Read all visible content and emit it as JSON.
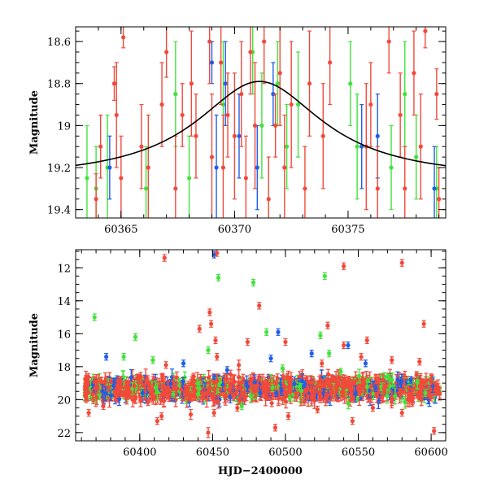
{
  "colors": {
    "red": "#f2493a",
    "green": "#43e23c",
    "blue": "#1f5fe6",
    "model": "#000000"
  },
  "chart_data": [
    {
      "type": "scatter",
      "title": "",
      "xlabel": "",
      "ylabel": "Magnitude",
      "xlim": [
        60363.0,
        60379.3
      ],
      "ylim": [
        19.44,
        18.53
      ],
      "y_inverted": true,
      "grid": false,
      "x_ticks": [
        60365,
        60370,
        60375
      ],
      "x_tick_labels": [
        "60365",
        "60370",
        "60375"
      ],
      "y_ticks": [
        18.6,
        18.8,
        19.0,
        19.2,
        19.4
      ],
      "y_tick_labels": [
        "18.6",
        "18.8",
        "19",
        "19.2",
        "19.4"
      ],
      "model_curve": {
        "type": "peak",
        "t0": 60371.1,
        "base_mag": 19.26,
        "amplitude": 0.47,
        "width_days": 3.4
      },
      "series": [
        {
          "color_key": "red",
          "points": [
            [
              60363.9,
              19.35,
              0.12
            ],
            [
              60364.1,
              19.1,
              0.15
            ],
            [
              60364.7,
              18.8,
              0.08
            ],
            [
              60364.8,
              18.95,
              0.25
            ],
            [
              60365.0,
              19.25,
              0.2
            ],
            [
              60365.1,
              18.58,
              0.05
            ],
            [
              60365.9,
              19.1,
              0.2
            ],
            [
              60366.2,
              19.2,
              0.25
            ],
            [
              60366.8,
              18.9,
              0.2
            ],
            [
              60367.0,
              18.65,
              0.12
            ],
            [
              60367.4,
              19.3,
              0.25
            ],
            [
              60367.7,
              18.95,
              0.15
            ],
            [
              60368.1,
              18.8,
              0.25
            ],
            [
              60368.3,
              19.05,
              0.2
            ],
            [
              60368.9,
              18.6,
              0.2
            ],
            [
              60369.0,
              19.15,
              0.3
            ],
            [
              60369.4,
              18.7,
              0.2
            ],
            [
              60369.5,
              19.2,
              0.25
            ],
            [
              60369.7,
              18.95,
              0.2
            ],
            [
              60370.0,
              19.05,
              0.3
            ],
            [
              60370.3,
              18.85,
              0.25
            ],
            [
              60370.5,
              19.25,
              0.2
            ],
            [
              60370.7,
              18.65,
              0.2
            ],
            [
              60370.9,
              19.0,
              0.3
            ],
            [
              60371.3,
              18.6,
              0.2
            ],
            [
              60371.5,
              19.35,
              0.2
            ],
            [
              60371.8,
              19.0,
              0.15
            ],
            [
              60372.0,
              18.75,
              0.25
            ],
            [
              60372.2,
              19.2,
              0.25
            ],
            [
              60372.5,
              18.9,
              0.3
            ],
            [
              60373.1,
              19.3,
              0.2
            ],
            [
              60373.3,
              18.8,
              0.25
            ],
            [
              60373.9,
              19.05,
              0.25
            ],
            [
              60374.2,
              18.7,
              0.2
            ],
            [
              60375.8,
              19.1,
              0.3
            ],
            [
              60376.0,
              18.9,
              0.2
            ],
            [
              60376.3,
              19.3,
              0.2
            ],
            [
              60376.8,
              18.6,
              0.15
            ],
            [
              60377.3,
              18.95,
              0.2
            ],
            [
              60377.5,
              19.3,
              0.2
            ],
            [
              60377.9,
              18.75,
              0.2
            ],
            [
              60378.2,
              19.1,
              0.25
            ],
            [
              60378.4,
              18.55,
              0.08
            ],
            [
              60378.9,
              18.85,
              0.12
            ],
            [
              60379.0,
              19.35,
              0.15
            ]
          ]
        },
        {
          "color_key": "green",
          "points": [
            [
              60363.5,
              19.25,
              0.25
            ],
            [
              60363.9,
              19.3,
              0.2
            ],
            [
              60364.4,
              19.2,
              0.25
            ],
            [
              60366.1,
              19.3,
              0.2
            ],
            [
              60367.4,
              18.85,
              0.25
            ],
            [
              60368.0,
              19.25,
              0.2
            ],
            [
              60369.5,
              18.9,
              0.3
            ],
            [
              60370.8,
              18.65,
              0.2
            ],
            [
              60371.2,
              19.0,
              0.25
            ],
            [
              60371.9,
              18.8,
              0.2
            ],
            [
              60372.3,
              19.1,
              0.2
            ],
            [
              60372.8,
              18.9,
              0.25
            ],
            [
              60375.1,
              18.8,
              0.2
            ],
            [
              60375.4,
              19.1,
              0.25
            ],
            [
              60376.9,
              19.2,
              0.2
            ],
            [
              60377.5,
              18.85,
              0.25
            ],
            [
              60378.0,
              19.15,
              0.2
            ],
            [
              60378.9,
              19.3,
              0.2
            ]
          ]
        },
        {
          "color_key": "blue",
          "points": [
            [
              60364.5,
              19.2,
              0.15
            ],
            [
              60369.0,
              18.7,
              0.1
            ],
            [
              60369.2,
              19.2,
              0.25
            ],
            [
              60369.6,
              18.8,
              0.2
            ],
            [
              60370.2,
              19.05,
              0.2
            ],
            [
              60371.0,
              19.2,
              0.2
            ],
            [
              60371.7,
              18.85,
              0.15
            ],
            [
              60375.6,
              19.1,
              0.2
            ],
            [
              60376.3,
              19.05,
              0.2
            ],
            [
              60378.8,
              19.3,
              0.2
            ]
          ]
        }
      ]
    },
    {
      "type": "scatter",
      "title": "",
      "xlabel": "HJD−2400000",
      "ylabel": "Magnitude",
      "xlim": [
        60356,
        60610
      ],
      "ylim": [
        22.5,
        10.9
      ],
      "y_inverted": true,
      "grid": false,
      "x_ticks": [
        60400,
        60450,
        60500,
        60550,
        60600
      ],
      "x_tick_labels": [
        "60400",
        "60450",
        "60500",
        "60550",
        "60600"
      ],
      "y_ticks": [
        12,
        14,
        16,
        18,
        20,
        22
      ],
      "y_tick_labels": [
        "12",
        "14",
        "16",
        "18",
        "20",
        "22"
      ],
      "dense_band": {
        "x_start": 60362,
        "x_end": 60606,
        "center_mag": 19.35,
        "half_spread": 0.55
      },
      "series": [
        {
          "color_key": "red",
          "points": [
            [
              60417,
              11.4,
              0.2
            ],
            [
              60453,
              11.1,
              0.2
            ],
            [
              60482,
              14.3,
              0.2
            ],
            [
              60580,
              11.7,
              0.2
            ],
            [
              60540,
              11.9,
              0.2
            ],
            [
              60448,
              14.7,
              0.2
            ],
            [
              60441,
              15.7,
              0.2
            ],
            [
              60449,
              15.4,
              0.2
            ],
            [
              60595,
              15.4,
              0.2
            ],
            [
              60592,
              17.7,
              0.2
            ],
            [
              60418,
              17.9,
              0.2
            ],
            [
              60452,
              16.4,
              0.2
            ],
            [
              60453,
              17.4,
              0.2
            ],
            [
              60437,
              18.6,
              0.2
            ],
            [
              60468,
              17.9,
              0.3
            ],
            [
              60474,
              16.5,
              0.2
            ],
            [
              60540,
              16.7,
              0.2
            ],
            [
              60529,
              15.5,
              0.2
            ],
            [
              60552,
              17.4,
              0.2
            ],
            [
              60556,
              16.4,
              0.2
            ],
            [
              60573,
              17.6,
              0.2
            ],
            [
              60590,
              18.5,
              0.2
            ],
            [
              60365,
              20.8,
              0.2
            ],
            [
              60375,
              20.4,
              0.2
            ],
            [
              60415,
              21.0,
              0.2
            ],
            [
              60447,
              22.0,
              0.3
            ],
            [
              60451,
              20.8,
              0.2
            ],
            [
              60467,
              20.5,
              0.2
            ],
            [
              60502,
              21.0,
              0.2
            ],
            [
              60522,
              20.6,
              0.2
            ],
            [
              60546,
              21.3,
              0.2
            ],
            [
              60560,
              20.5,
              0.2
            ],
            [
              60580,
              20.8,
              0.2
            ],
            [
              60602,
              21.9,
              0.2
            ],
            [
              60412,
              21.3,
              0.2
            ],
            [
              60493,
              21.7,
              0.2
            ],
            [
              60435,
              20.9,
              0.3
            ],
            [
              60500,
              16.5,
              0.2
            ],
            [
              60525,
              17.8,
              0.2
            ],
            [
              60600,
              18.9,
              0.2
            ]
          ]
        },
        {
          "color_key": "green",
          "points": [
            [
              60454,
              12.6,
              0.2
            ],
            [
              60478,
              12.9,
              0.2
            ],
            [
              60527,
              12.5,
              0.2
            ],
            [
              60369,
              15.0,
              0.2
            ],
            [
              60389,
              17.4,
              0.2
            ],
            [
              60397,
              16.2,
              0.2
            ],
            [
              60409,
              17.6,
              0.2
            ],
            [
              60447,
              17.0,
              0.2
            ],
            [
              60487,
              15.9,
              0.2
            ],
            [
              60524,
              16.1,
              0.2
            ],
            [
              60530,
              17.2,
              0.2
            ],
            [
              60538,
              18.3,
              0.2
            ],
            [
              60570,
              18.6,
              0.2
            ],
            [
              60585,
              18.9,
              0.2
            ],
            [
              60498,
              18.1,
              0.2
            ],
            [
              60503,
              19.9,
              0.2
            ],
            [
              60470,
              20.4,
              0.2
            ],
            [
              60596,
              19.6,
              0.2
            ]
          ]
        },
        {
          "color_key": "blue",
          "points": [
            [
              60451,
              11.2,
              0.2
            ],
            [
              60495,
              15.9,
              0.2
            ],
            [
              60543,
              16.7,
              0.2
            ],
            [
              60377,
              17.4,
              0.2
            ],
            [
              60430,
              17.8,
              0.2
            ],
            [
              60460,
              18.2,
              0.2
            ],
            [
              60490,
              17.5,
              0.2
            ],
            [
              60518,
              17.2,
              0.2
            ],
            [
              60555,
              17.8,
              0.2
            ],
            [
              60586,
              18.8,
              0.2
            ],
            [
              60402,
              19.6,
              0.2
            ],
            [
              60474,
              19.2,
              0.3
            ],
            [
              60562,
              19.3,
              0.2
            ]
          ]
        }
      ]
    }
  ]
}
